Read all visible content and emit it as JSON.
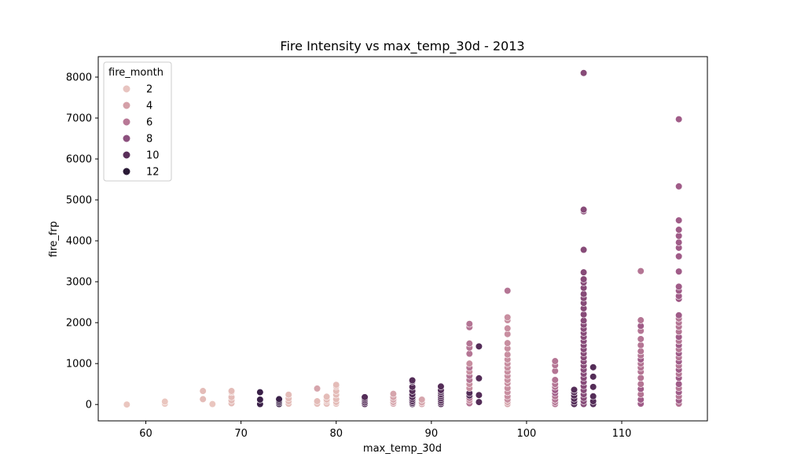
{
  "chart_data": {
    "type": "scatter",
    "title": "Fire Intensity vs max_temp_30d - 2013",
    "xlabel": "max_temp_30d",
    "ylabel": "fire_frp",
    "xlim": [
      55,
      119
    ],
    "ylim": [
      -400,
      8500
    ],
    "x_ticks": [
      60,
      70,
      80,
      90,
      100,
      110
    ],
    "y_ticks": [
      0,
      1000,
      2000,
      3000,
      4000,
      5000,
      6000,
      7000,
      8000
    ],
    "grid": false,
    "legend": {
      "title": "fire_month",
      "placement": "top-left",
      "entries": [
        {
          "label": "2",
          "color": "#e8c4c0"
        },
        {
          "label": "4",
          "color": "#d4a0a8"
        },
        {
          "label": "6",
          "color": "#b87896"
        },
        {
          "label": "8",
          "color": "#8c507e"
        },
        {
          "label": "10",
          "color": "#5a2f5a"
        },
        {
          "label": "12",
          "color": "#2a1a36"
        }
      ]
    },
    "points": [
      [
        58,
        0,
        2
      ],
      [
        62,
        20,
        2
      ],
      [
        62,
        70,
        2
      ],
      [
        66,
        130,
        3
      ],
      [
        66,
        330,
        3
      ],
      [
        67,
        10,
        2
      ],
      [
        69,
        30,
        3
      ],
      [
        69,
        100,
        3
      ],
      [
        69,
        180,
        3
      ],
      [
        69,
        300,
        3
      ],
      [
        69,
        330,
        3
      ],
      [
        72,
        10,
        11
      ],
      [
        72,
        120,
        11
      ],
      [
        72,
        300,
        11
      ],
      [
        74,
        10,
        11
      ],
      [
        74,
        50,
        11
      ],
      [
        74,
        90,
        11
      ],
      [
        74,
        130,
        11
      ],
      [
        75,
        20,
        3
      ],
      [
        75,
        80,
        3
      ],
      [
        75,
        150,
        3
      ],
      [
        75,
        240,
        3
      ],
      [
        78,
        20,
        3
      ],
      [
        78,
        80,
        3
      ],
      [
        78,
        390,
        4
      ],
      [
        79,
        20,
        3
      ],
      [
        79,
        80,
        3
      ],
      [
        79,
        120,
        3
      ],
      [
        79,
        190,
        3
      ],
      [
        80,
        20,
        3
      ],
      [
        80,
        60,
        3
      ],
      [
        80,
        130,
        3
      ],
      [
        80,
        240,
        3
      ],
      [
        80,
        330,
        3
      ],
      [
        80,
        440,
        3
      ],
      [
        80,
        480,
        3
      ],
      [
        83,
        10,
        10
      ],
      [
        83,
        50,
        10
      ],
      [
        83,
        100,
        10
      ],
      [
        83,
        140,
        10
      ],
      [
        83,
        180,
        10
      ],
      [
        86,
        20,
        4
      ],
      [
        86,
        60,
        4
      ],
      [
        86,
        120,
        4
      ],
      [
        86,
        180,
        4
      ],
      [
        86,
        260,
        4
      ],
      [
        88,
        10,
        10
      ],
      [
        88,
        40,
        10
      ],
      [
        88,
        80,
        10
      ],
      [
        88,
        130,
        10
      ],
      [
        88,
        180,
        10
      ],
      [
        88,
        250,
        10
      ],
      [
        88,
        330,
        10
      ],
      [
        88,
        430,
        10
      ],
      [
        88,
        560,
        10
      ],
      [
        88,
        590,
        10
      ],
      [
        89,
        10,
        4
      ],
      [
        89,
        50,
        4
      ],
      [
        89,
        120,
        4
      ],
      [
        91,
        10,
        10
      ],
      [
        91,
        50,
        10
      ],
      [
        91,
        100,
        10
      ],
      [
        91,
        150,
        10
      ],
      [
        91,
        200,
        10
      ],
      [
        91,
        250,
        10
      ],
      [
        91,
        300,
        10
      ],
      [
        91,
        350,
        10
      ],
      [
        91,
        440,
        10
      ],
      [
        94,
        30,
        6
      ],
      [
        94,
        100,
        5
      ],
      [
        94,
        160,
        6
      ],
      [
        94,
        220,
        10
      ],
      [
        94,
        280,
        10
      ],
      [
        94,
        400,
        5
      ],
      [
        94,
        500,
        5
      ],
      [
        94,
        600,
        6
      ],
      [
        94,
        700,
        6
      ],
      [
        94,
        800,
        5
      ],
      [
        94,
        900,
        6
      ],
      [
        94,
        1000,
        5
      ],
      [
        94,
        1240,
        6
      ],
      [
        94,
        1390,
        6
      ],
      [
        94,
        1490,
        6
      ],
      [
        94,
        1890,
        6
      ],
      [
        94,
        1970,
        6
      ],
      [
        95,
        60,
        10
      ],
      [
        95,
        230,
        10
      ],
      [
        95,
        640,
        10
      ],
      [
        95,
        1420,
        10
      ],
      [
        98,
        10,
        4
      ],
      [
        98,
        60,
        4
      ],
      [
        98,
        120,
        5
      ],
      [
        98,
        200,
        5
      ],
      [
        98,
        300,
        5
      ],
      [
        98,
        400,
        5
      ],
      [
        98,
        520,
        5
      ],
      [
        98,
        600,
        5
      ],
      [
        98,
        700,
        5
      ],
      [
        98,
        800,
        5
      ],
      [
        98,
        900,
        5
      ],
      [
        98,
        1000,
        5
      ],
      [
        98,
        1100,
        5
      ],
      [
        98,
        1220,
        5
      ],
      [
        98,
        1370,
        5
      ],
      [
        98,
        1500,
        5
      ],
      [
        98,
        1720,
        5
      ],
      [
        98,
        1860,
        5
      ],
      [
        98,
        2060,
        5
      ],
      [
        98,
        2130,
        5
      ],
      [
        98,
        2780,
        6
      ],
      [
        103,
        10,
        6
      ],
      [
        103,
        60,
        6
      ],
      [
        103,
        120,
        6
      ],
      [
        103,
        200,
        6
      ],
      [
        103,
        280,
        7
      ],
      [
        103,
        350,
        7
      ],
      [
        103,
        430,
        6
      ],
      [
        103,
        500,
        6
      ],
      [
        103,
        600,
        6
      ],
      [
        103,
        820,
        6
      ],
      [
        103,
        960,
        6
      ],
      [
        103,
        1060,
        6
      ],
      [
        105,
        10,
        10
      ],
      [
        105,
        70,
        10
      ],
      [
        105,
        140,
        10
      ],
      [
        105,
        220,
        10
      ],
      [
        105,
        300,
        10
      ],
      [
        105,
        360,
        10
      ],
      [
        106,
        10,
        8
      ],
      [
        106,
        80,
        8
      ],
      [
        106,
        160,
        8
      ],
      [
        106,
        250,
        8
      ],
      [
        106,
        350,
        8
      ],
      [
        106,
        450,
        8
      ],
      [
        106,
        550,
        8
      ],
      [
        106,
        650,
        8
      ],
      [
        106,
        750,
        8
      ],
      [
        106,
        850,
        8
      ],
      [
        106,
        950,
        8
      ],
      [
        106,
        1050,
        8
      ],
      [
        106,
        1150,
        8
      ],
      [
        106,
        1250,
        8
      ],
      [
        106,
        1350,
        8
      ],
      [
        106,
        1450,
        8
      ],
      [
        106,
        1550,
        8
      ],
      [
        106,
        1650,
        8
      ],
      [
        106,
        1750,
        8
      ],
      [
        106,
        1850,
        8
      ],
      [
        106,
        1950,
        8
      ],
      [
        106,
        2050,
        8
      ],
      [
        106,
        2200,
        8
      ],
      [
        106,
        2350,
        8
      ],
      [
        106,
        2480,
        8
      ],
      [
        106,
        2600,
        8
      ],
      [
        106,
        2700,
        8
      ],
      [
        106,
        2850,
        8
      ],
      [
        106,
        2980,
        8
      ],
      [
        106,
        3060,
        8
      ],
      [
        106,
        3230,
        8
      ],
      [
        106,
        3780,
        8
      ],
      [
        106,
        4720,
        8
      ],
      [
        106,
        4760,
        8
      ],
      [
        106,
        8100,
        8
      ],
      [
        107,
        10,
        10
      ],
      [
        107,
        80,
        10
      ],
      [
        107,
        200,
        10
      ],
      [
        107,
        430,
        10
      ],
      [
        107,
        680,
        10
      ],
      [
        107,
        910,
        10
      ],
      [
        112,
        20,
        7
      ],
      [
        112,
        120,
        7
      ],
      [
        112,
        250,
        6
      ],
      [
        112,
        380,
        7
      ],
      [
        112,
        500,
        6
      ],
      [
        112,
        650,
        6
      ],
      [
        112,
        800,
        6
      ],
      [
        112,
        900,
        6
      ],
      [
        112,
        1000,
        6
      ],
      [
        112,
        1100,
        7
      ],
      [
        112,
        1200,
        6
      ],
      [
        112,
        1300,
        6
      ],
      [
        112,
        1450,
        6
      ],
      [
        112,
        1600,
        6
      ],
      [
        112,
        1800,
        6
      ],
      [
        112,
        1920,
        7
      ],
      [
        112,
        2060,
        6
      ],
      [
        112,
        3260,
        6
      ],
      [
        116,
        20,
        6
      ],
      [
        116,
        100,
        7
      ],
      [
        116,
        200,
        6
      ],
      [
        116,
        300,
        7
      ],
      [
        116,
        400,
        6
      ],
      [
        116,
        500,
        7
      ],
      [
        116,
        650,
        7
      ],
      [
        116,
        750,
        6
      ],
      [
        116,
        850,
        7
      ],
      [
        116,
        950,
        6
      ],
      [
        116,
        1050,
        7
      ],
      [
        116,
        1150,
        6
      ],
      [
        116,
        1250,
        7
      ],
      [
        116,
        1350,
        6
      ],
      [
        116,
        1450,
        7
      ],
      [
        116,
        1550,
        6
      ],
      [
        116,
        1650,
        7
      ],
      [
        116,
        1780,
        6
      ],
      [
        116,
        1900,
        6
      ],
      [
        116,
        2000,
        6
      ],
      [
        116,
        2100,
        6
      ],
      [
        116,
        2180,
        7
      ],
      [
        116,
        2580,
        7
      ],
      [
        116,
        2650,
        7
      ],
      [
        116,
        2780,
        7
      ],
      [
        116,
        2880,
        7
      ],
      [
        116,
        3250,
        7
      ],
      [
        116,
        3620,
        7
      ],
      [
        116,
        3830,
        7
      ],
      [
        116,
        3960,
        7
      ],
      [
        116,
        4120,
        7
      ],
      [
        116,
        4270,
        7
      ],
      [
        116,
        4500,
        7
      ],
      [
        116,
        5330,
        7
      ],
      [
        116,
        6970,
        7
      ]
    ]
  }
}
